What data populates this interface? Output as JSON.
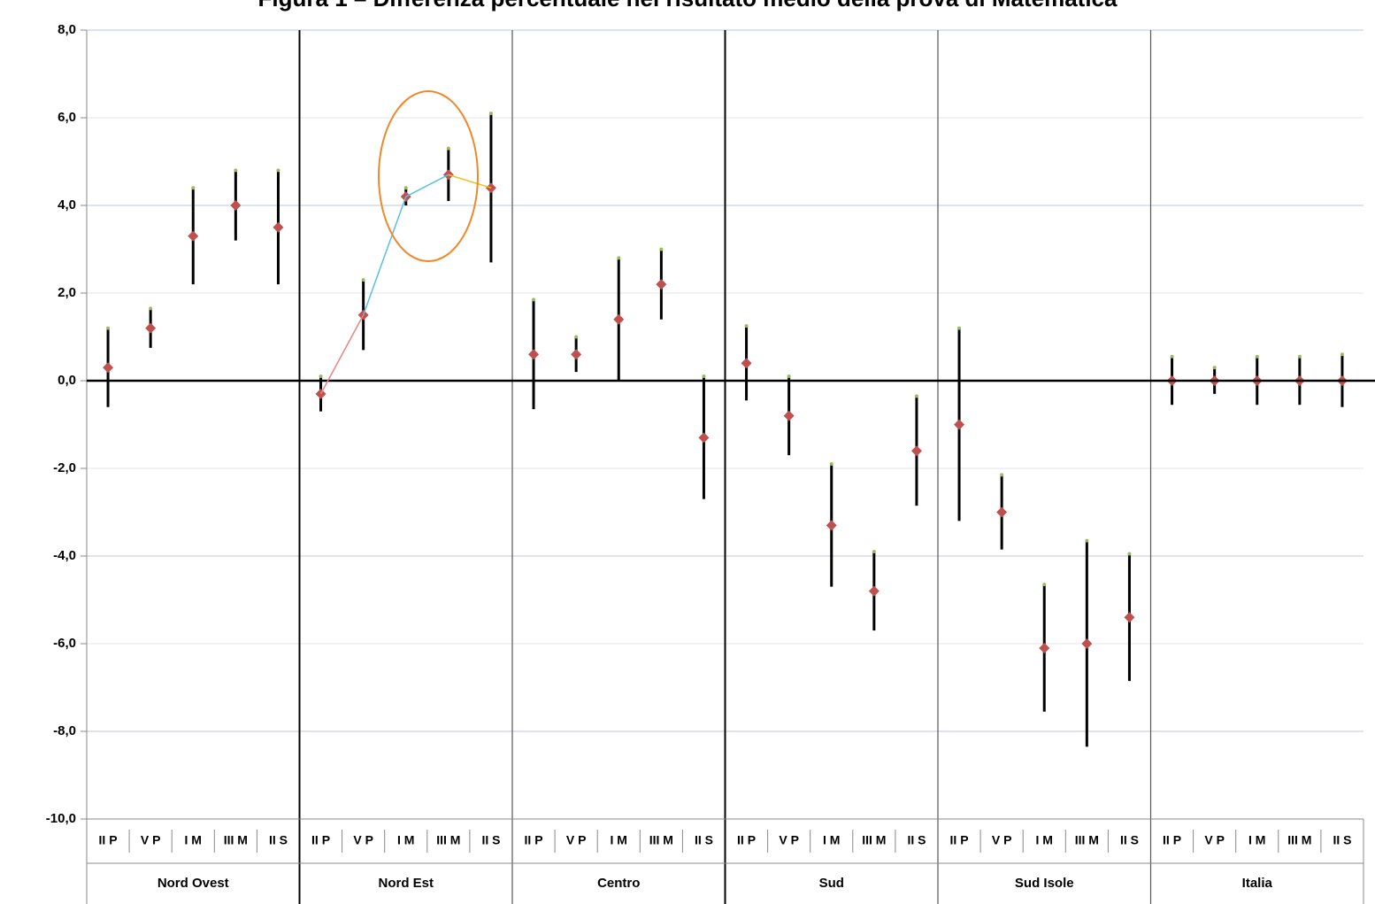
{
  "chart_data": {
    "type": "errorbar",
    "title": "Figura 1 – Differenza percentuale nel risultato medio della prova di Matematica",
    "groups": [
      "Nord Ovest",
      "Nord Est",
      "Centro",
      "Sud",
      "Sud Isole",
      "Italia"
    ],
    "categories": [
      "II P",
      "V P",
      "I M",
      "III M",
      "II S",
      "II P",
      "V P",
      "I M",
      "III M",
      "II S",
      "II P",
      "V P",
      "I M",
      "III M",
      "II S",
      "II P",
      "V P",
      "I M",
      "III M",
      "II S",
      "II P",
      "V P",
      "I M",
      "III M",
      "II S",
      "II P",
      "V P",
      "I M",
      "III M",
      "II S"
    ],
    "values": [
      0.3,
      1.2,
      3.3,
      4.0,
      3.5,
      -0.3,
      1.5,
      4.2,
      4.7,
      4.4,
      0.6,
      0.6,
      1.4,
      2.2,
      -1.3,
      0.4,
      -0.8,
      -3.3,
      -4.8,
      -1.6,
      -1.0,
      -3.0,
      -6.1,
      -6.0,
      -5.4,
      0.0,
      0.0,
      0.0,
      0.0,
      0.0
    ],
    "errors": [
      0.9,
      0.45,
      1.1,
      0.8,
      1.3,
      0.4,
      0.8,
      0.2,
      0.6,
      1.7,
      1.25,
      0.4,
      1.4,
      0.8,
      1.4,
      0.85,
      0.9,
      1.4,
      0.9,
      1.25,
      2.2,
      0.85,
      1.45,
      2.35,
      1.45,
      0.55,
      0.3,
      0.55,
      0.55,
      0.6
    ],
    "color": "#c0504d",
    "ylim": [
      -10,
      8
    ],
    "yticks": [
      {
        "value": -10,
        "label": "-10,0"
      },
      {
        "value": -8,
        "label": "-8,0"
      },
      {
        "value": -6,
        "label": "-6,0"
      },
      {
        "value": -4,
        "label": "-4,0"
      },
      {
        "value": -2,
        "label": "-2,0"
      },
      {
        "value": 0,
        "label": "0,0"
      },
      {
        "value": 2,
        "label": "2,0"
      },
      {
        "value": 4,
        "label": "4,0"
      },
      {
        "value": 6,
        "label": "6,0"
      },
      {
        "value": 8,
        "label": "8,0"
      }
    ],
    "grid": true
  }
}
